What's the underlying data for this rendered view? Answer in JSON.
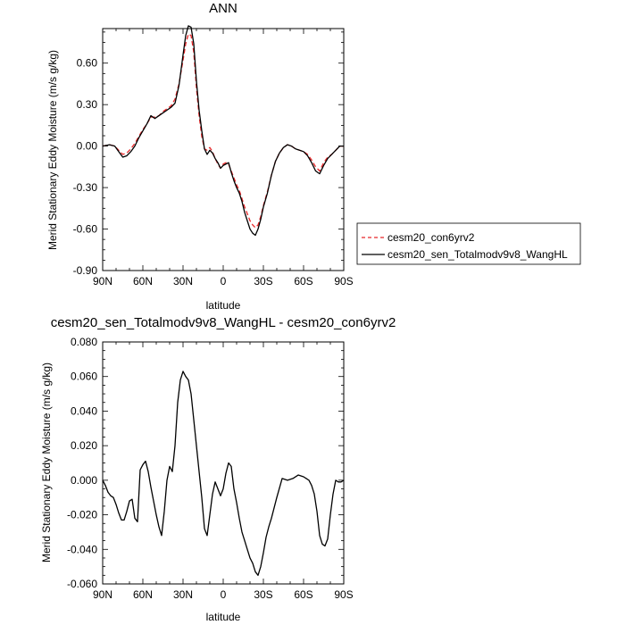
{
  "chart_data": [
    {
      "type": "line",
      "title": "ANN",
      "xlabel": "latitude",
      "ylabel": "Merid Stationary Eddy Moisture (m/s g/kg)",
      "xlim": [
        90,
        -90
      ],
      "ylim": [
        -0.9,
        0.85
      ],
      "x_ticks": [
        90,
        60,
        30,
        0,
        -30,
        -60,
        -90
      ],
      "x_tick_labels": [
        "90N",
        "60N",
        "30N",
        "0",
        "30S",
        "60S",
        "90S"
      ],
      "y_ticks": [
        -0.9,
        -0.6,
        -0.3,
        0.0,
        0.3,
        0.6
      ],
      "y_tick_labels": [
        "-0.90",
        "-0.60",
        "-0.30",
        "0.00",
        "0.30",
        "0.60"
      ],
      "grid": false,
      "legend_position": "right",
      "series": [
        {
          "name": "cesm20_con6yrv2",
          "color": "#e8282a",
          "dash": "dashed",
          "x": [
            90,
            85,
            81,
            78,
            75,
            72,
            69,
            66,
            63,
            60,
            57,
            54,
            51,
            48,
            45,
            42,
            39,
            36,
            33,
            30,
            28,
            26,
            24,
            22,
            20,
            18,
            16,
            14,
            12,
            10,
            8,
            6,
            4,
            2,
            0,
            -2,
            -4,
            -6,
            -8,
            -10,
            -12,
            -14,
            -16,
            -18,
            -20,
            -22,
            -24,
            -26,
            -28,
            -30,
            -33,
            -36,
            -39,
            -42,
            -45,
            -48,
            -51,
            -54,
            -57,
            -60,
            -63,
            -66,
            -69,
            -72,
            -75,
            -78,
            -81,
            -84,
            -87,
            -90
          ],
          "y": [
            0.0,
            0.01,
            0.0,
            -0.03,
            -0.06,
            -0.05,
            -0.02,
            0.02,
            0.07,
            0.12,
            0.16,
            0.21,
            0.21,
            0.22,
            0.25,
            0.27,
            0.29,
            0.34,
            0.45,
            0.62,
            0.74,
            0.81,
            0.8,
            0.68,
            0.42,
            0.22,
            0.07,
            -0.02,
            -0.03,
            -0.01,
            -0.04,
            -0.09,
            -0.13,
            -0.16,
            -0.13,
            -0.12,
            -0.13,
            -0.18,
            -0.23,
            -0.28,
            -0.32,
            -0.38,
            -0.44,
            -0.49,
            -0.54,
            -0.57,
            -0.59,
            -0.57,
            -0.51,
            -0.43,
            -0.33,
            -0.21,
            -0.11,
            -0.05,
            -0.01,
            0.01,
            0.0,
            -0.02,
            -0.03,
            -0.04,
            -0.06,
            -0.1,
            -0.15,
            -0.18,
            -0.12,
            -0.08,
            -0.06,
            -0.03,
            0.0,
            0.0
          ]
        },
        {
          "name": "cesm20_sen_Totalmodv9v8_WangHL",
          "color": "#000000",
          "dash": "solid",
          "x": [
            90,
            85,
            81,
            78,
            75,
            72,
            69,
            66,
            63,
            60,
            57,
            54,
            51,
            48,
            45,
            42,
            39,
            36,
            33,
            30,
            28,
            26,
            24,
            22,
            20,
            18,
            16,
            14,
            12,
            10,
            8,
            6,
            4,
            2,
            0,
            -2,
            -4,
            -6,
            -8,
            -10,
            -12,
            -14,
            -16,
            -18,
            -20,
            -22,
            -24,
            -26,
            -28,
            -30,
            -33,
            -36,
            -39,
            -42,
            -45,
            -48,
            -51,
            -54,
            -57,
            -60,
            -63,
            -66,
            -69,
            -72,
            -75,
            -78,
            -81,
            -84,
            -87,
            -90
          ],
          "y": [
            0.0,
            0.01,
            0.0,
            -0.04,
            -0.08,
            -0.07,
            -0.04,
            0.0,
            0.06,
            0.11,
            0.16,
            0.22,
            0.2,
            0.22,
            0.24,
            0.26,
            0.28,
            0.31,
            0.44,
            0.66,
            0.8,
            0.87,
            0.86,
            0.74,
            0.47,
            0.26,
            0.11,
            -0.02,
            -0.06,
            -0.03,
            -0.05,
            -0.09,
            -0.12,
            -0.16,
            -0.14,
            -0.13,
            -0.12,
            -0.19,
            -0.25,
            -0.3,
            -0.34,
            -0.4,
            -0.48,
            -0.54,
            -0.6,
            -0.63,
            -0.645,
            -0.6,
            -0.53,
            -0.44,
            -0.34,
            -0.21,
            -0.11,
            -0.05,
            -0.01,
            0.01,
            0.0,
            -0.02,
            -0.03,
            -0.04,
            -0.07,
            -0.12,
            -0.18,
            -0.2,
            -0.14,
            -0.09,
            -0.06,
            -0.03,
            0.0,
            0.0
          ]
        }
      ]
    },
    {
      "type": "line",
      "title": "cesm20_sen_Totalmodv9v8_WangHL - cesm20_con6yrv2",
      "xlabel": "latitude",
      "ylabel": "Merid Stationary Eddy Moisture (m/s g/kg)",
      "xlim": [
        90,
        -90
      ],
      "ylim": [
        -0.06,
        0.08
      ],
      "x_ticks": [
        90,
        60,
        30,
        0,
        -30,
        -60,
        -90
      ],
      "x_tick_labels": [
        "90N",
        "60N",
        "30N",
        "0",
        "30S",
        "60S",
        "90S"
      ],
      "y_ticks": [
        -0.06,
        -0.04,
        -0.02,
        0.0,
        0.02,
        0.04,
        0.06,
        0.08
      ],
      "y_tick_labels": [
        "-0.060",
        "-0.040",
        "-0.020",
        "0.000",
        "0.020",
        "0.040",
        "0.060",
        "0.080"
      ],
      "grid": false,
      "series": [
        {
          "color": "#000000",
          "dash": "solid",
          "x": [
            90,
            88,
            86,
            84,
            82,
            80,
            78,
            76,
            74,
            72,
            70,
            68,
            66,
            64,
            62,
            60,
            58,
            56,
            54,
            52,
            50,
            48,
            46,
            44,
            42,
            40,
            38,
            36,
            34,
            32,
            30,
            28,
            26,
            24,
            22,
            20,
            18,
            16,
            14,
            12,
            10,
            8,
            6,
            4,
            2,
            0,
            -2,
            -4,
            -6,
            -8,
            -10,
            -12,
            -14,
            -16,
            -18,
            -20,
            -22,
            -24,
            -26,
            -28,
            -30,
            -32,
            -34,
            -36,
            -40,
            -44,
            -48,
            -52,
            -56,
            -60,
            -62,
            -64,
            -66,
            -68,
            -70,
            -72,
            -74,
            -76,
            -78,
            -80,
            -82,
            -84,
            -86,
            -88,
            -90
          ],
          "y": [
            0.0,
            -0.003,
            -0.007,
            -0.009,
            -0.01,
            -0.014,
            -0.019,
            -0.023,
            -0.023,
            -0.018,
            -0.012,
            -0.011,
            -0.022,
            -0.024,
            0.006,
            0.009,
            0.011,
            0.005,
            -0.004,
            -0.012,
            -0.02,
            -0.027,
            -0.032,
            -0.018,
            0.0,
            0.008,
            0.005,
            0.02,
            0.045,
            0.058,
            0.063,
            0.06,
            0.058,
            0.05,
            0.035,
            0.02,
            0.005,
            -0.01,
            -0.028,
            -0.032,
            -0.02,
            -0.008,
            -0.001,
            -0.005,
            -0.009,
            -0.005,
            0.004,
            0.01,
            0.008,
            -0.005,
            -0.013,
            -0.022,
            -0.03,
            -0.035,
            -0.04,
            -0.045,
            -0.048,
            -0.053,
            -0.055,
            -0.05,
            -0.042,
            -0.033,
            -0.027,
            -0.022,
            -0.01,
            0.001,
            0.0,
            0.001,
            0.003,
            0.002,
            0.001,
            0.0,
            -0.003,
            -0.008,
            -0.018,
            -0.032,
            -0.037,
            -0.038,
            -0.034,
            -0.02,
            -0.008,
            0.0,
            -0.001,
            -0.001,
            0.0
          ]
        }
      ]
    }
  ]
}
